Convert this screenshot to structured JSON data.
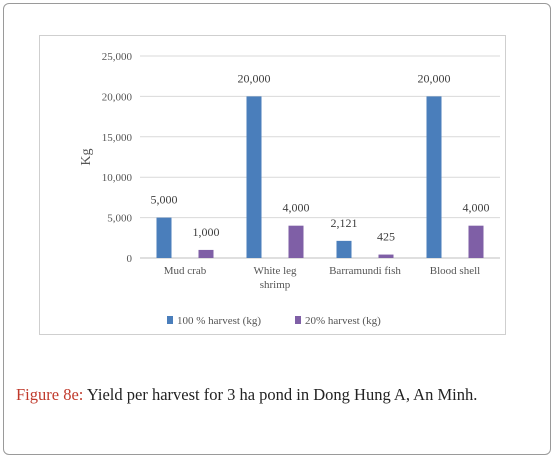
{
  "caption": {
    "label": "Figure 8e:",
    "text": "Yield per harvest for 3 ha pond in Dong Hung A, An Minh."
  },
  "chart_data": {
    "type": "bar",
    "ylabel": "Kg",
    "ylim": [
      0,
      25000
    ],
    "yticks": [
      "0",
      "5,000",
      "10,000",
      "15,000",
      "20,000",
      "25,000"
    ],
    "categories": [
      [
        "Mud crab"
      ],
      [
        "White leg",
        "shrimp"
      ],
      [
        "Barramundi fish"
      ],
      [
        "Blood shell"
      ]
    ],
    "series": [
      {
        "name": "100 % harvest (kg)",
        "color": "#4a7ebb",
        "values": [
          5000,
          20000,
          2121,
          20000
        ],
        "labels": [
          "5,000",
          "20,000",
          "2,121",
          "20,000"
        ]
      },
      {
        "name": "20% harvest (kg)",
        "color": "#7f5fa6",
        "values": [
          1000,
          4000,
          425,
          4000
        ],
        "labels": [
          "1,000",
          "4,000",
          "425",
          "4,000"
        ]
      }
    ],
    "legend": "bottom",
    "grid": true
  }
}
